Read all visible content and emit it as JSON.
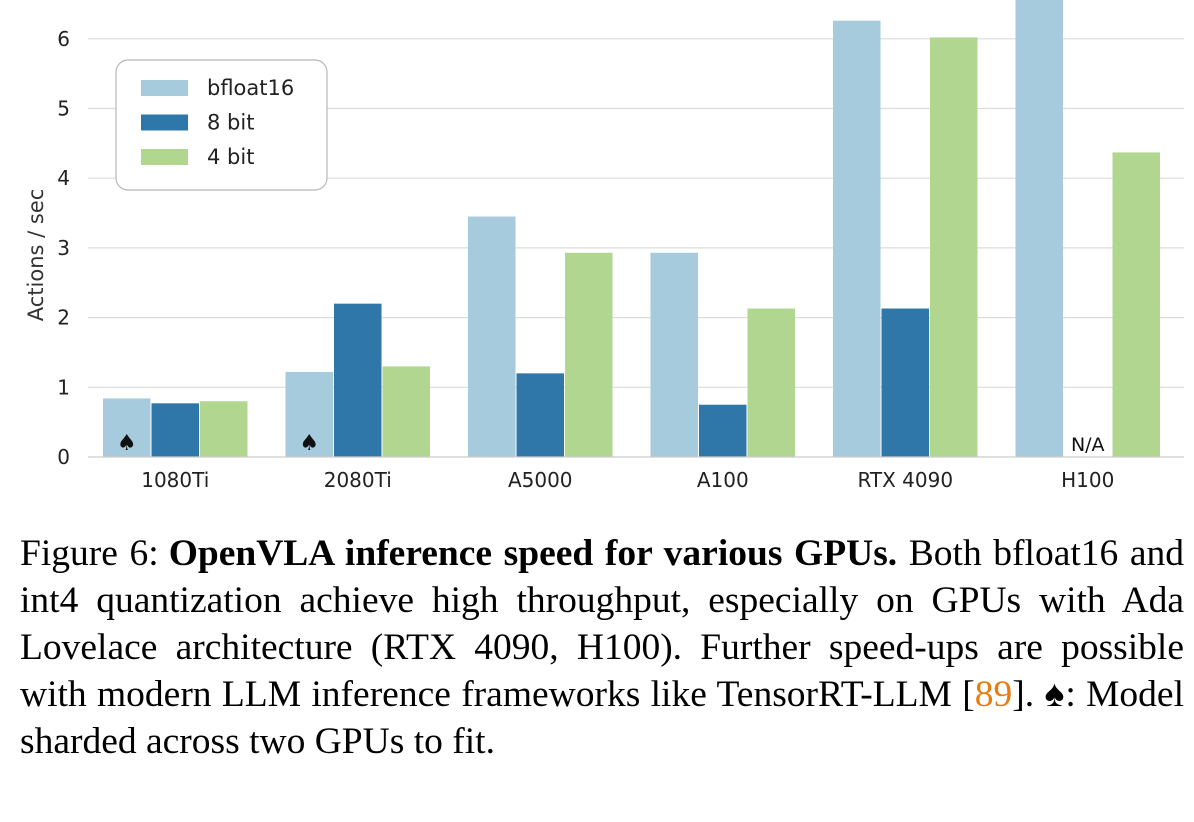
{
  "chart_data": {
    "type": "bar",
    "categories": [
      "1080Ti",
      "2080Ti",
      "A5000",
      "A100",
      "RTX 4090",
      "H100"
    ],
    "series": [
      {
        "name": "bfloat16",
        "color": "#a6cbdc",
        "values": [
          0.84,
          1.22,
          3.45,
          2.93,
          6.26,
          6.6
        ]
      },
      {
        "name": "8 bit",
        "color": "#2e77a8",
        "values": [
          0.77,
          2.2,
          1.2,
          0.75,
          2.13,
          null
        ]
      },
      {
        "name": "4 bit",
        "color": "#b1d68f",
        "values": [
          0.8,
          1.3,
          2.93,
          2.13,
          6.02,
          4.37
        ]
      }
    ],
    "ylabel": "Actions / sec",
    "xlabel": "",
    "ylim": [
      0,
      6.6
    ],
    "yticks": [
      0,
      1,
      2,
      3,
      4,
      5,
      6
    ],
    "grid": true,
    "legend_position": "top-left",
    "annotations": {
      "sharded_marker": "♠",
      "sharded_categories": [
        "1080Ti",
        "2080Ti"
      ],
      "na_label": "N/A",
      "na_category": "H100",
      "na_series": "8 bit"
    }
  },
  "caption": {
    "label": "Figure 6:",
    "title": "OpenVLA inference speed for various GPUs.",
    "text_1": " Both bfloat16 and int4 quantization achieve high throughput, especially on GPUs with Ada Lovelace architecture (RTX 4090, H100). Further speed-ups are possible with modern LLM inference frameworks like TensorRT-LLM [",
    "ref": "89",
    "text_2": "]. ♠: Model sharded across two GPUs to fit."
  }
}
